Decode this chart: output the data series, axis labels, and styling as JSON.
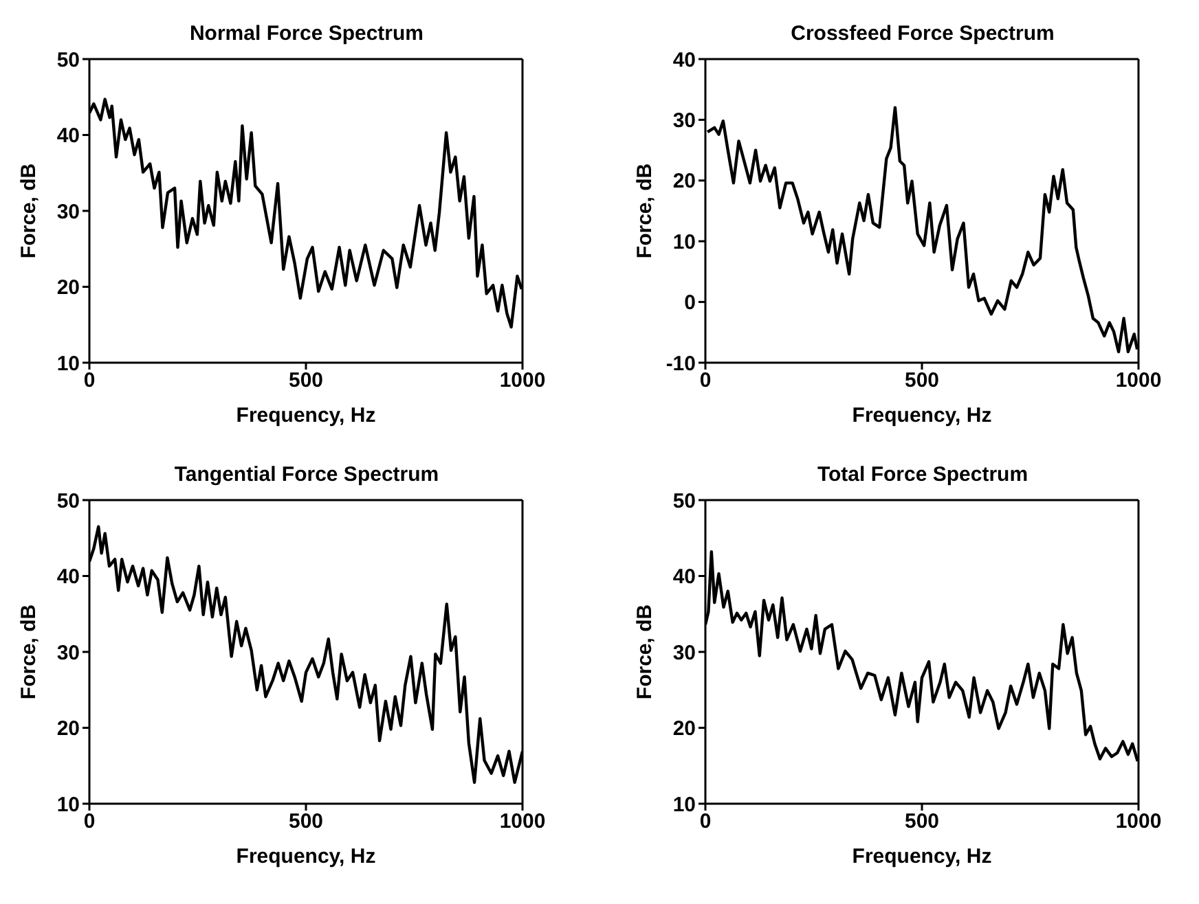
{
  "chart_data": [
    {
      "type": "line",
      "title": "Normal Force Spectrum",
      "xlabel": "Frequency, Hz",
      "ylabel": "Force, dB",
      "color": "#000000",
      "xlim": [
        0,
        1000
      ],
      "xticks": [
        0,
        500,
        1000
      ],
      "ylim": [
        10,
        50
      ],
      "yticks": [
        10,
        20,
        30,
        40,
        50
      ],
      "x": [
        0,
        10,
        26,
        36,
        47,
        52,
        62,
        73,
        83,
        93,
        104,
        114,
        124,
        140,
        150,
        161,
        169,
        181,
        197,
        204,
        212,
        225,
        238,
        249,
        256,
        266,
        275,
        287,
        295,
        306,
        314,
        326,
        337,
        345,
        353,
        363,
        374,
        383,
        399,
        420,
        435,
        448,
        461,
        474,
        487,
        503,
        515,
        529,
        544,
        560,
        577,
        591,
        601,
        617,
        637,
        658,
        679,
        699,
        710,
        725,
        741,
        762,
        777,
        788,
        798,
        808,
        824,
        834,
        845,
        855,
        865,
        876,
        888,
        896,
        907,
        917,
        932,
        943,
        953,
        964,
        974,
        988,
        998
      ],
      "values": [
        42.9,
        44.1,
        42,
        44.7,
        42.3,
        43.8,
        37.1,
        42,
        39.4,
        40.9,
        37.4,
        39.4,
        35.1,
        36.2,
        33,
        35.1,
        27.8,
        32.4,
        33,
        25.2,
        31.3,
        25.8,
        29,
        26.9,
        33.9,
        28.4,
        30.7,
        28.1,
        35.1,
        31.3,
        33.9,
        31,
        36.5,
        31.3,
        41.2,
        34.2,
        40.3,
        33.3,
        32.2,
        25.8,
        33.6,
        22.3,
        26.6,
        23.1,
        18.5,
        23.7,
        25.2,
        19.4,
        22,
        19.7,
        25.2,
        20.2,
        24.8,
        20.8,
        25.5,
        20.2,
        24.8,
        23.7,
        19.9,
        25.5,
        22.6,
        30.7,
        25.5,
        28.4,
        24.8,
        29.8,
        40.3,
        35.1,
        37.1,
        31.3,
        34.5,
        26.4,
        31.9,
        21.4,
        25.5,
        19.1,
        20.2,
        16.8,
        20.2,
        16.5,
        14.7,
        21.4,
        19.7
      ]
    },
    {
      "type": "line",
      "title": "Crossfeed Force Spectrum",
      "xlabel": "Frequency, Hz",
      "ylabel": "Force, dB",
      "color": "#000000",
      "xlim": [
        0,
        1000
      ],
      "xticks": [
        0,
        500,
        1000
      ],
      "ylim": [
        -10,
        40
      ],
      "yticks": [
        -10,
        0,
        10,
        20,
        30,
        40
      ],
      "x": [
        5,
        21,
        31,
        41,
        52,
        65,
        77,
        88,
        103,
        116,
        127,
        139,
        149,
        160,
        172,
        186,
        201,
        213,
        227,
        237,
        247,
        263,
        273,
        284,
        294,
        304,
        316,
        332,
        340,
        356,
        366,
        376,
        387,
        402,
        418,
        428,
        438,
        449,
        459,
        467,
        477,
        490,
        505,
        518,
        528,
        541,
        557,
        570,
        582,
        596,
        608,
        619,
        631,
        644,
        660,
        675,
        691,
        706,
        719,
        732,
        745,
        758,
        773,
        784,
        794,
        804,
        814,
        825,
        835,
        849,
        856,
        863,
        873,
        884,
        895,
        907,
        921,
        933,
        943,
        954,
        966,
        976,
        990,
        997
      ],
      "values": [
        28,
        28.7,
        27.6,
        29.8,
        25,
        19.6,
        26.5,
        23.6,
        19.6,
        25,
        19.9,
        22.5,
        19.9,
        22.1,
        15.5,
        19.6,
        19.6,
        17,
        13,
        14.8,
        11.2,
        14.8,
        11.5,
        8.2,
        11.9,
        6.4,
        11.2,
        4.6,
        10.4,
        16.3,
        13.4,
        17.7,
        13,
        12.3,
        23.6,
        25.4,
        32,
        23.2,
        22.5,
        16.3,
        19.9,
        11.2,
        9.3,
        16.3,
        8.2,
        12.6,
        15.9,
        5.3,
        10.4,
        13,
        2.4,
        4.6,
        0.2,
        0.6,
        -2,
        0.2,
        -1.2,
        3.5,
        2.4,
        4.6,
        8.2,
        6.1,
        7.2,
        17.7,
        14.8,
        20.7,
        17,
        21.8,
        16.3,
        15.2,
        9,
        6.8,
        3.9,
        1,
        -2.7,
        -3.4,
        -5.6,
        -3.4,
        -4.9,
        -8.2,
        -2.7,
        -8.2,
        -5.3,
        -7.8
      ]
    },
    {
      "type": "line",
      "title": "Tangential Force Spectrum",
      "xlabel": "Frequency, Hz",
      "ylabel": "Force, dB",
      "color": "#000000",
      "xlim": [
        0,
        1000
      ],
      "xticks": [
        0,
        500,
        1000
      ],
      "ylim": [
        10,
        50
      ],
      "yticks": [
        10,
        20,
        30,
        40,
        50
      ],
      "x": [
        0,
        10,
        21,
        28,
        36,
        46,
        59,
        67,
        75,
        88,
        100,
        113,
        124,
        134,
        144,
        158,
        168,
        180,
        191,
        203,
        216,
        232,
        242,
        253,
        263,
        273,
        284,
        294,
        304,
        314,
        328,
        340,
        351,
        361,
        374,
        387,
        397,
        407,
        423,
        436,
        448,
        461,
        474,
        490,
        500,
        515,
        529,
        541,
        552,
        562,
        572,
        582,
        595,
        608,
        624,
        636,
        649,
        660,
        670,
        684,
        696,
        706,
        719,
        729,
        742,
        753,
        768,
        778,
        792,
        799,
        811,
        825,
        835,
        845,
        856,
        866,
        876,
        889,
        902,
        912,
        928,
        943,
        956,
        969,
        982,
        1000
      ],
      "values": [
        41.9,
        43.6,
        46.5,
        43,
        45.6,
        41.3,
        42.2,
        38.1,
        42.2,
        39.2,
        41.3,
        38.7,
        41,
        37.5,
        40.7,
        39.5,
        35.2,
        42.4,
        39,
        36.6,
        37.8,
        35.5,
        37.5,
        41.3,
        34.9,
        39.2,
        34.6,
        38.4,
        34.9,
        37.2,
        29.4,
        34,
        30.8,
        33.1,
        30.2,
        25,
        28.2,
        24.1,
        26.2,
        28.5,
        26.2,
        28.8,
        26.7,
        23.5,
        27.3,
        29.1,
        26.7,
        28.5,
        31.7,
        27.3,
        23.8,
        29.7,
        26.2,
        27.3,
        22.7,
        27,
        23.3,
        25.6,
        18.3,
        23.5,
        19.8,
        24.1,
        20.3,
        25.6,
        29.4,
        23.3,
        28.5,
        24.4,
        19.8,
        29.7,
        28.5,
        36.3,
        30.2,
        32,
        22.1,
        26.7,
        18,
        12.8,
        21.2,
        15.7,
        14,
        16.3,
        13.7,
        16.9,
        12.8,
        16.9
      ]
    },
    {
      "type": "line",
      "title": "Total Force Spectrum",
      "xlabel": "Frequency, Hz",
      "ylabel": "Force, dB",
      "color": "#000000",
      "xlim": [
        0,
        1000
      ],
      "xticks": [
        0,
        500,
        1000
      ],
      "ylim": [
        10,
        50
      ],
      "yticks": [
        10,
        20,
        30,
        40,
        50
      ],
      "x": [
        0,
        7,
        14,
        21,
        31,
        42,
        52,
        63,
        73,
        83,
        94,
        104,
        115,
        125,
        135,
        146,
        156,
        167,
        177,
        188,
        203,
        219,
        234,
        245,
        255,
        265,
        276,
        292,
        307,
        323,
        339,
        359,
        375,
        391,
        406,
        422,
        438,
        453,
        469,
        484,
        490,
        500,
        516,
        526,
        542,
        552,
        563,
        578,
        594,
        609,
        620,
        635,
        651,
        664,
        677,
        693,
        705,
        719,
        734,
        745,
        757,
        771,
        784,
        794,
        802,
        816,
        826,
        836,
        847,
        857,
        868,
        878,
        889,
        899,
        911,
        924,
        938,
        951,
        964,
        976,
        986,
        998
      ],
      "values": [
        33.6,
        35.3,
        43.2,
        36.5,
        40.3,
        35.9,
        38,
        33.9,
        35.1,
        34.2,
        35.1,
        33.3,
        35.3,
        29.5,
        36.8,
        34.2,
        36.2,
        31.9,
        37.1,
        31.6,
        33.6,
        30.1,
        33,
        30.4,
        34.8,
        29.8,
        33,
        33.6,
        27.8,
        30.1,
        29,
        25.2,
        27.2,
        26.9,
        23.7,
        26.6,
        21.7,
        27.2,
        22.8,
        26,
        20.8,
        26.6,
        28.7,
        23.4,
        26,
        28.4,
        24,
        26,
        24.9,
        21.4,
        26.6,
        22,
        24.9,
        23.4,
        19.9,
        22,
        25.5,
        23.1,
        26,
        28.4,
        24,
        27.2,
        24.9,
        19.9,
        28.4,
        27.8,
        33.6,
        29.8,
        31.9,
        27.2,
        24.9,
        19.1,
        20.2,
        17.9,
        15.9,
        17.3,
        16.2,
        16.7,
        18.2,
        16.5,
        17.9,
        15.6
      ]
    }
  ]
}
